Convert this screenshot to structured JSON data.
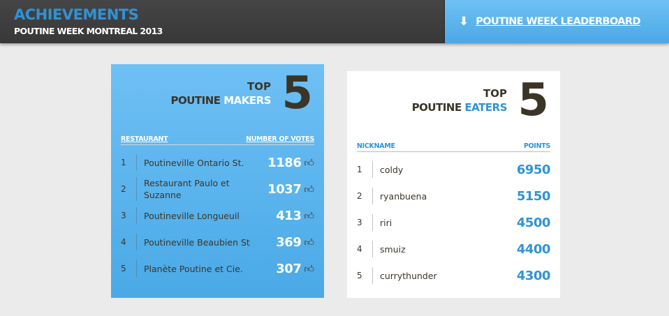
{
  "header": {
    "title": "ACHIEVEMENTS",
    "subtitle": "POUTINE WEEK MONTREAL 2013",
    "leaderboard_link": "POUTINE WEEK LEADERBOARD",
    "leaderboard_icon": "arrow-down-icon"
  },
  "makers": {
    "top": "TOP",
    "prefix": "POUTINE",
    "highlight": "MAKERS",
    "number": "5",
    "col_left": "RESTAURANT",
    "col_right": "NUMBER OF VOTES",
    "rows": [
      {
        "rank": "1",
        "name": "Poutineville Ontario St.",
        "votes": "1186"
      },
      {
        "rank": "2",
        "name": "Restaurant Paulo et Suzanne",
        "votes": "1037"
      },
      {
        "rank": "3",
        "name": "Poutineville Longueuil",
        "votes": "413"
      },
      {
        "rank": "4",
        "name": "Poutineville Beaubien St",
        "votes": "369"
      },
      {
        "rank": "5",
        "name": "Planète Poutine et Cie.",
        "votes": "307"
      }
    ]
  },
  "eaters": {
    "top": "TOP",
    "prefix": "POUTINE",
    "highlight": "EATERS",
    "number": "5",
    "col_left": "NICKNAME",
    "col_right": "POINTS",
    "rows": [
      {
        "rank": "1",
        "name": "coldy",
        "points": "6950"
      },
      {
        "rank": "2",
        "name": "ryanbuena",
        "points": "5150"
      },
      {
        "rank": "3",
        "name": "riri",
        "points": "4500"
      },
      {
        "rank": "4",
        "name": "smuiz",
        "points": "4400"
      },
      {
        "rank": "5",
        "name": "currythunder",
        "points": "4300"
      }
    ]
  },
  "colors": {
    "accent": "#2f93d6",
    "header_bg": "#3d3d3d",
    "card_blue": "#5db5ee",
    "text_dark": "#3b3528"
  }
}
